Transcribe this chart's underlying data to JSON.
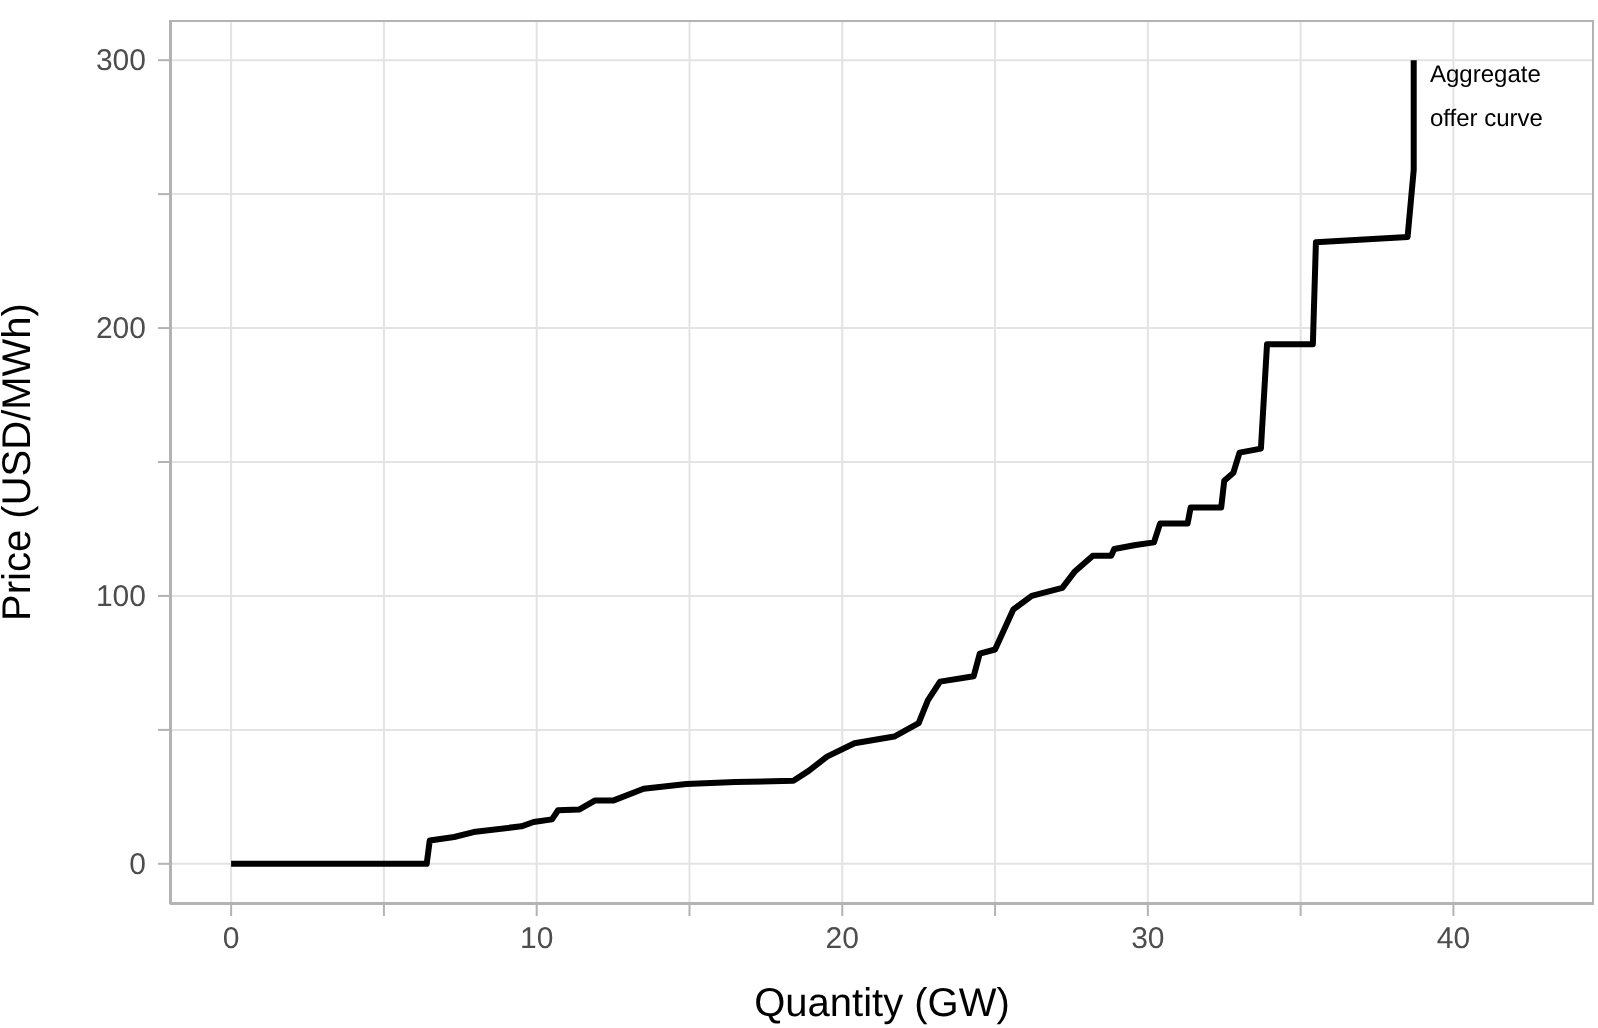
{
  "chart_data": {
    "type": "line",
    "xlabel": "Quantity (GW)",
    "ylabel": "Price (USD/MWh)",
    "annotations": [
      "Aggregate\noffer curve"
    ],
    "series": [
      {
        "color": "#000000",
        "x": [
          0,
          6.4,
          6.5,
          7.3,
          8,
          9.5,
          9.9,
          10.5,
          10.7,
          11.4,
          11.9,
          12.5,
          13.5,
          14.9,
          16.5,
          18.4,
          18.9,
          19.5,
          20.4,
          21.7,
          22.5,
          22.8,
          23.2,
          24.3,
          24.5,
          25,
          25.6,
          26.2,
          27.2,
          27.6,
          28.2,
          28.8,
          28.9,
          29.6,
          30.2,
          30.4,
          31.3,
          31.4,
          32.4,
          32.5,
          32.8,
          33,
          33.7,
          33.9,
          35.4,
          35.5,
          38.5,
          38.7,
          38.7
        ],
        "values": [
          0,
          0,
          8.7,
          10,
          12,
          14,
          15.6,
          16.6,
          20,
          20.3,
          23.6,
          23.6,
          28,
          29.8,
          30.5,
          31,
          34.7,
          40,
          45,
          47.5,
          52.5,
          61,
          68,
          70,
          78.5,
          80,
          95,
          100,
          103,
          109,
          115,
          115,
          117.5,
          119,
          120,
          127,
          127,
          133,
          133,
          143,
          146,
          153.5,
          155,
          194,
          194,
          232,
          234,
          259,
          300
        ]
      }
    ],
    "xlim": [
      -2,
      44.6
    ],
    "ylim": [
      -15,
      315
    ],
    "xticks": [
      0,
      {
        "value": 5,
        "label": null
      },
      10,
      {
        "value": 15,
        "label": null
      },
      20,
      {
        "value": 25,
        "label": null
      },
      30,
      {
        "value": 35,
        "label": null
      },
      40
    ],
    "yticks": [
      0,
      {
        "value": 50,
        "label": null
      },
      100,
      {
        "value": 150,
        "label": null
      },
      200,
      {
        "value": 250,
        "label": null
      },
      300
    ],
    "grid": true,
    "marker": "none",
    "line_style": "solid"
  }
}
